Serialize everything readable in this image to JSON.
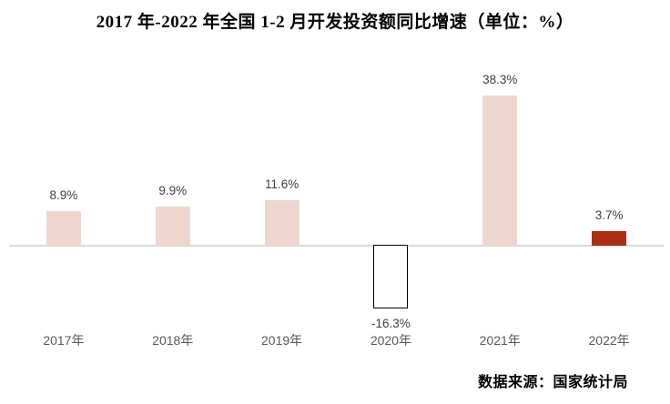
{
  "title": "2017 年-2022 年全国 1-2 月开发投资额同比增速（单位：%）",
  "source": "数据来源：国家统计局",
  "colors": {
    "axis_line": "#d9d9d9",
    "pink_bar": "#eed6ce",
    "red_bar": "#a93014",
    "negative_bar_fill": "#ffffff",
    "negative_bar_border": "#000000",
    "value_label_text": "#404040",
    "axis_label_text": "#595959",
    "title_text": "#000000"
  },
  "chart_data": {
    "type": "bar",
    "title": "2017 年-2022 年全国 1-2 月开发投资额同比增速（单位：%）",
    "xlabel": "",
    "ylabel": "",
    "unit": "%",
    "categories": [
      "2017年",
      "2018年",
      "2019年",
      "2020年",
      "2021年",
      "2022年"
    ],
    "values": [
      8.9,
      9.9,
      11.6,
      -16.3,
      38.3,
      3.7
    ],
    "value_labels": [
      "8.9%",
      "9.9%",
      "11.6%",
      "-16.3%",
      "38.3%",
      "3.7%"
    ],
    "bar_colors": [
      "#eed6ce",
      "#eed6ce",
      "#eed6ce",
      "#ffffff",
      "#eed6ce",
      "#a93014"
    ],
    "bar_border_colors": [
      null,
      null,
      null,
      "#000000",
      null,
      null
    ],
    "ylim": [
      -20,
      42
    ],
    "grid": false,
    "legend": null,
    "baseline": 0,
    "source_note": "数据来源：国家统计局"
  }
}
